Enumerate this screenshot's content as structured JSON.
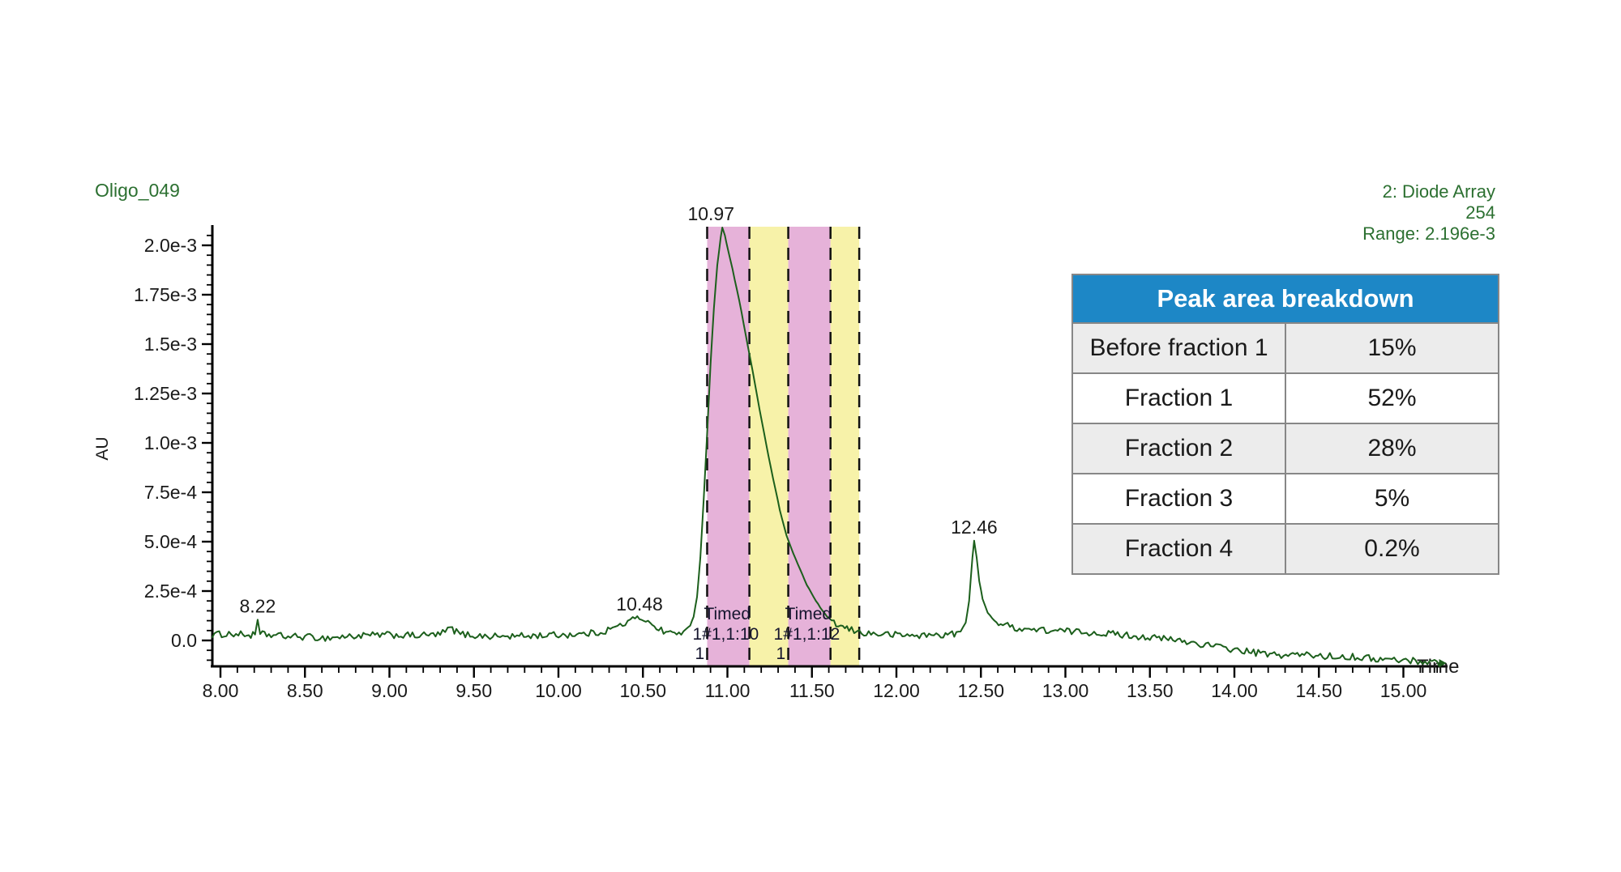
{
  "title_left": "Oligo_049",
  "header_right": {
    "line1": "2: Diode Array",
    "line2": "254",
    "line3": "Range: 2.196e-3"
  },
  "table": {
    "title": "Peak area breakdown",
    "header_bg": "#1d87c6",
    "rows": [
      {
        "label": "Before fraction 1",
        "value": "15%"
      },
      {
        "label": "Fraction 1",
        "value": "52%"
      },
      {
        "label": "Fraction 2",
        "value": "28%"
      },
      {
        "label": "Fraction 3",
        "value": "5%"
      },
      {
        "label": "Fraction 4",
        "value": "0.2%"
      }
    ]
  },
  "chart_data": {
    "type": "line",
    "title": "Oligo_049",
    "xlabel": "Time",
    "ylabel": "AU",
    "value_units": "1e-3 AU",
    "xlim": [
      7.95,
      15.28
    ],
    "ylim": [
      -0.127,
      2.096
    ],
    "grid": false,
    "trace_color": "#1c5f1c",
    "annotation_color": "#2c7031",
    "x_ticks": [
      {
        "v": 8.0,
        "label": "8.00"
      },
      {
        "v": 8.5,
        "label": "8.50"
      },
      {
        "v": 9.0,
        "label": "9.00"
      },
      {
        "v": 9.5,
        "label": "9.50"
      },
      {
        "v": 10.0,
        "label": "10.00"
      },
      {
        "v": 10.5,
        "label": "10.50"
      },
      {
        "v": 11.0,
        "label": "11.00"
      },
      {
        "v": 11.5,
        "label": "11.50"
      },
      {
        "v": 12.0,
        "label": "12.00"
      },
      {
        "v": 12.5,
        "label": "12.50"
      },
      {
        "v": 13.0,
        "label": "13.00"
      },
      {
        "v": 13.5,
        "label": "13.50"
      },
      {
        "v": 14.0,
        "label": "14.00"
      },
      {
        "v": 14.5,
        "label": "14.50"
      },
      {
        "v": 15.0,
        "label": "15.00"
      }
    ],
    "x_minor_step": 0.1,
    "y_ticks": [
      {
        "v": 0.0,
        "label": "0.0"
      },
      {
        "v": 0.25,
        "label": "2.5e-4"
      },
      {
        "v": 0.5,
        "label": "5.0e-4"
      },
      {
        "v": 0.75,
        "label": "7.5e-4"
      },
      {
        "v": 1.0,
        "label": "1.0e-3"
      },
      {
        "v": 1.25,
        "label": "1.25e-3"
      },
      {
        "v": 1.5,
        "label": "1.5e-3"
      },
      {
        "v": 1.75,
        "label": "1.75e-3"
      },
      {
        "v": 2.0,
        "label": "2.0e-3"
      }
    ],
    "y_minor_step": 0.05,
    "peak_labels": [
      {
        "label": "8.22",
        "t": 8.22,
        "v": 0.105
      },
      {
        "label": "10.48",
        "t": 10.48,
        "v": 0.115
      },
      {
        "label": "10.97",
        "t": 10.97,
        "v": 2.09
      },
      {
        "label": "12.46",
        "t": 12.46,
        "v": 0.505
      }
    ],
    "fractions": [
      {
        "name": "Fraction 1",
        "t_start": 10.88,
        "t_end": 11.13,
        "color": "#e6b2d9"
      },
      {
        "name": "Fraction 2",
        "t_start": 11.13,
        "t_end": 11.36,
        "color": "#f7f2a9"
      },
      {
        "name": "Fraction 3",
        "t_start": 11.36,
        "t_end": 11.61,
        "color": "#e6b2d9"
      },
      {
        "name": "Fraction 4",
        "t_start": 11.61,
        "t_end": 11.78,
        "color": "#f7f2a9"
      }
    ],
    "collection_labels": [
      {
        "lines": [
          "Timed",
          "1#1,1:10",
          "1"
        ],
        "t": 10.88
      },
      {
        "lines": [
          "Timed",
          "1#1,1:12",
          "1"
        ],
        "t": 11.36
      }
    ],
    "series": [
      {
        "name": "254",
        "points": [
          [
            7.95,
            0.028
          ],
          [
            8.05,
            0.034
          ],
          [
            8.12,
            0.03
          ],
          [
            8.18,
            0.026
          ],
          [
            8.205,
            0.03
          ],
          [
            8.22,
            0.105
          ],
          [
            8.235,
            0.032
          ],
          [
            8.3,
            0.026
          ],
          [
            8.4,
            0.02
          ],
          [
            8.5,
            0.018
          ],
          [
            8.62,
            0.012
          ],
          [
            8.75,
            0.02
          ],
          [
            8.9,
            0.026
          ],
          [
            9.0,
            0.028
          ],
          [
            9.15,
            0.024
          ],
          [
            9.3,
            0.03
          ],
          [
            9.36,
            0.062
          ],
          [
            9.42,
            0.032
          ],
          [
            9.55,
            0.022
          ],
          [
            9.7,
            0.02
          ],
          [
            9.85,
            0.024
          ],
          [
            10.0,
            0.028
          ],
          [
            10.15,
            0.032
          ],
          [
            10.25,
            0.042
          ],
          [
            10.35,
            0.07
          ],
          [
            10.44,
            0.105
          ],
          [
            10.48,
            0.115
          ],
          [
            10.53,
            0.1
          ],
          [
            10.58,
            0.06
          ],
          [
            10.65,
            0.04
          ],
          [
            10.7,
            0.036
          ],
          [
            10.74,
            0.046
          ],
          [
            10.78,
            0.075
          ],
          [
            10.8,
            0.12
          ],
          [
            10.82,
            0.22
          ],
          [
            10.84,
            0.42
          ],
          [
            10.86,
            0.72
          ],
          [
            10.88,
            1.05
          ],
          [
            10.9,
            1.4
          ],
          [
            10.92,
            1.68
          ],
          [
            10.94,
            1.9
          ],
          [
            10.96,
            2.04
          ],
          [
            10.97,
            2.09
          ],
          [
            10.985,
            2.05
          ],
          [
            11.0,
            1.99
          ],
          [
            11.03,
            1.88
          ],
          [
            11.07,
            1.72
          ],
          [
            11.11,
            1.54
          ],
          [
            11.15,
            1.36
          ],
          [
            11.19,
            1.17
          ],
          [
            11.23,
            0.99
          ],
          [
            11.27,
            0.82
          ],
          [
            11.31,
            0.66
          ],
          [
            11.35,
            0.53
          ],
          [
            11.39,
            0.44
          ],
          [
            11.43,
            0.36
          ],
          [
            11.47,
            0.28
          ],
          [
            11.51,
            0.22
          ],
          [
            11.55,
            0.165
          ],
          [
            11.59,
            0.12
          ],
          [
            11.63,
            0.09
          ],
          [
            11.67,
            0.07
          ],
          [
            11.72,
            0.055
          ],
          [
            11.78,
            0.042
          ],
          [
            11.85,
            0.034
          ],
          [
            11.95,
            0.03
          ],
          [
            12.05,
            0.026
          ],
          [
            12.15,
            0.025
          ],
          [
            12.25,
            0.028
          ],
          [
            12.33,
            0.032
          ],
          [
            12.38,
            0.045
          ],
          [
            12.41,
            0.09
          ],
          [
            12.43,
            0.2
          ],
          [
            12.45,
            0.42
          ],
          [
            12.46,
            0.505
          ],
          [
            12.475,
            0.42
          ],
          [
            12.49,
            0.3
          ],
          [
            12.51,
            0.21
          ],
          [
            12.54,
            0.14
          ],
          [
            12.58,
            0.1
          ],
          [
            12.63,
            0.08
          ],
          [
            12.7,
            0.065
          ],
          [
            12.8,
            0.055
          ],
          [
            12.9,
            0.05
          ],
          [
            13.05,
            0.045
          ],
          [
            13.2,
            0.038
          ],
          [
            13.35,
            0.028
          ],
          [
            13.5,
            0.015
          ],
          [
            13.65,
            0.002
          ],
          [
            13.8,
            -0.018
          ],
          [
            13.95,
            -0.04
          ],
          [
            14.1,
            -0.06
          ],
          [
            14.25,
            -0.075
          ],
          [
            14.4,
            -0.072
          ],
          [
            14.55,
            -0.08
          ],
          [
            14.7,
            -0.082
          ],
          [
            14.85,
            -0.095
          ],
          [
            15.0,
            -0.1
          ],
          [
            15.1,
            -0.105
          ],
          [
            15.24,
            -0.115
          ]
        ]
      }
    ]
  }
}
